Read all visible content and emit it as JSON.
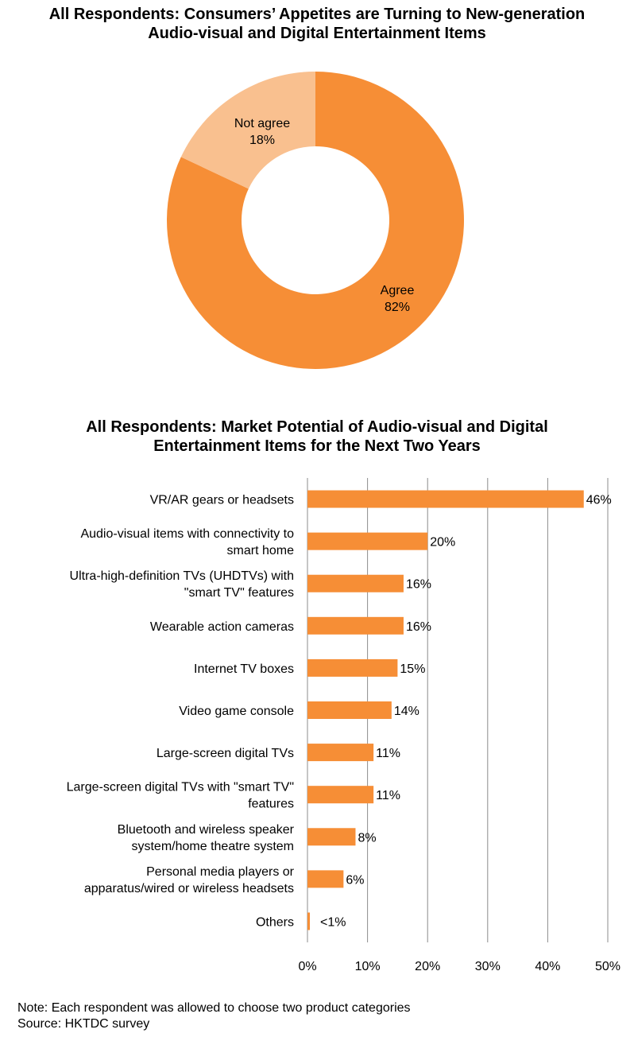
{
  "chart_data": [
    {
      "type": "pie",
      "title_lines": [
        "All Respondents: Consumers’ Appetites are Turning to New-generation",
        "Audio-visual and Digital Entertainment Items"
      ],
      "slices": [
        {
          "label": "Agree",
          "value": 82,
          "value_label": "82%",
          "color": "#f68e36"
        },
        {
          "label": "Not agree",
          "value": 18,
          "value_label": "18%",
          "color": "#f9c08f"
        }
      ],
      "donut": true
    },
    {
      "type": "bar",
      "orientation": "horizontal",
      "title_lines": [
        "All Respondents: Market Potential of Audio-visual and Digital",
        "Entertainment Items  for the Next Two Years"
      ],
      "categories": [
        [
          "VR/AR gears or headsets"
        ],
        [
          "Audio-visual items with connectivity to",
          "smart home"
        ],
        [
          "Ultra-high-definition TVs (UHDTVs) with",
          "\"smart TV\" features"
        ],
        [
          "Wearable action cameras"
        ],
        [
          "Internet TV boxes"
        ],
        [
          "Video game console"
        ],
        [
          "Large-screen digital TVs"
        ],
        [
          "Large-screen digital TVs with \"smart TV\"",
          "features"
        ],
        [
          "Bluetooth and wireless speaker",
          "system/home theatre system"
        ],
        [
          "Personal media players or",
          "apparatus/wired or wireless headsets"
        ],
        [
          "Others"
        ]
      ],
      "values": [
        46,
        20,
        16,
        16,
        15,
        14,
        11,
        11,
        8,
        6,
        0.4
      ],
      "value_labels": [
        "46%",
        "20%",
        "16%",
        "16%",
        "15%",
        "14%",
        "11%",
        "11%",
        "8%",
        "6%",
        "<1%"
      ],
      "xlim": [
        0,
        50
      ],
      "xticks": [
        0,
        10,
        20,
        30,
        40,
        50
      ],
      "xtick_labels": [
        "0%",
        "10%",
        "20%",
        "30%",
        "40%",
        "50%"
      ],
      "grid": true,
      "bar_color": "#f68e36"
    }
  ],
  "notes": {
    "note": "Note: Each respondent was allowed to choose two product categories",
    "source": "Source: HKTDC survey"
  }
}
